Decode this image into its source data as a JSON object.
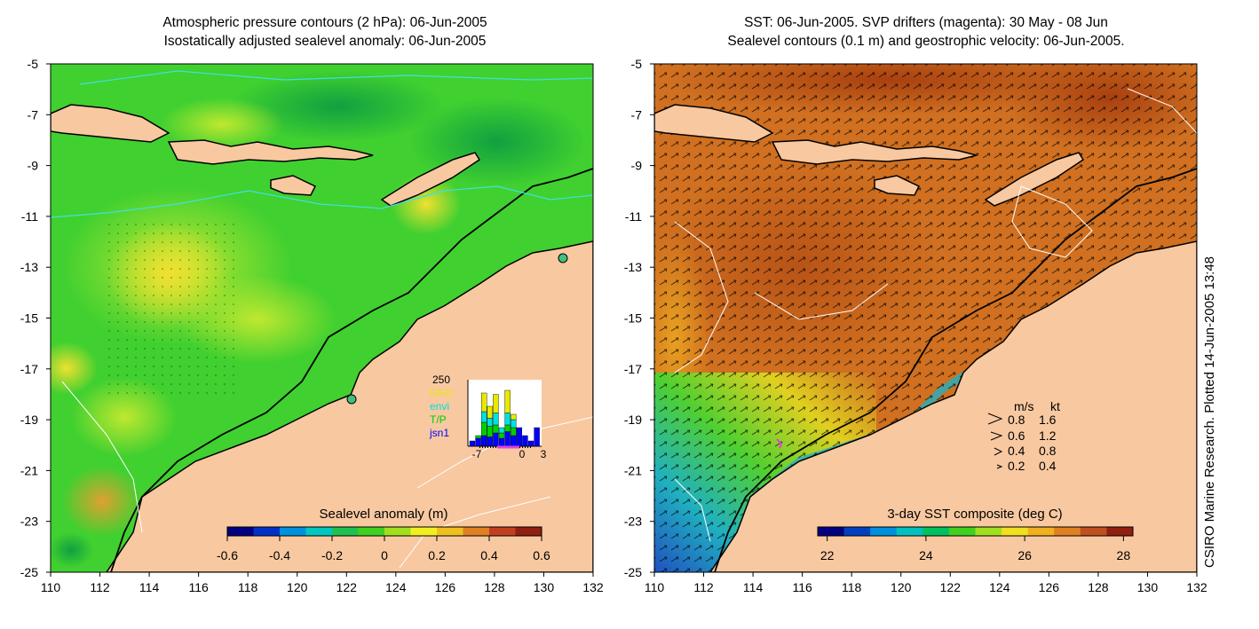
{
  "left_panel": {
    "title_line1": "Atmospheric pressure contours (2 hPa): 06-Jun-2005",
    "title_line2": "Isostatically adjusted sealevel anomaly: 06-Jun-2005",
    "x_ticks": [
      "110",
      "112",
      "114",
      "116",
      "118",
      "120",
      "122",
      "124",
      "126",
      "128",
      "130",
      "132"
    ],
    "y_ticks": [
      "-5",
      "-7",
      "-9",
      "-11",
      "-13",
      "-15",
      "-17",
      "-19",
      "-21",
      "-23",
      "-25"
    ],
    "colorbar": {
      "title": "Sealevel anomaly (m)",
      "ticks": [
        "-0.6",
        "-0.4",
        "-0.2",
        "0",
        "0.2",
        "0.4",
        "0.6"
      ],
      "colors": [
        "#000080",
        "#0030c8",
        "#0090e0",
        "#00c8c0",
        "#20c050",
        "#40d020",
        "#a0e020",
        "#f0f020",
        "#f0c020",
        "#e08020",
        "#c04020",
        "#902010"
      ]
    },
    "inset": {
      "max_label": "250",
      "legend": [
        {
          "label": "GFO",
          "color": "#e8e800"
        },
        {
          "label": "envi",
          "color": "#00e0e0"
        },
        {
          "label": "T/P",
          "color": "#00d000"
        },
        {
          "label": "jsn1",
          "color": "#0000ff"
        }
      ],
      "x_labels": [
        "-7",
        "0",
        "3"
      ],
      "bars": [
        {
          "jsn1": 20,
          "tp": 0,
          "envi": 0,
          "gfo": 0
        },
        {
          "jsn1": 30,
          "tp": 10,
          "envi": 0,
          "gfo": 0
        },
        {
          "jsn1": 40,
          "tp": 50,
          "envi": 40,
          "gfo": 70
        },
        {
          "jsn1": 35,
          "tp": 40,
          "envi": 30,
          "gfo": 45
        },
        {
          "jsn1": 50,
          "tp": 30,
          "envi": 45,
          "gfo": 70
        },
        {
          "jsn1": 30,
          "tp": 20,
          "envi": 20,
          "gfo": 0
        },
        {
          "jsn1": 55,
          "tp": 25,
          "envi": 45,
          "gfo": 85
        },
        {
          "jsn1": 40,
          "tp": 30,
          "envi": 30,
          "gfo": 20
        },
        {
          "jsn1": 70,
          "tp": 0,
          "envi": 0,
          "gfo": 0
        },
        {
          "jsn1": 40,
          "tp": 0,
          "envi": 0,
          "gfo": 0
        },
        {
          "jsn1": 20,
          "tp": 0,
          "envi": 0,
          "gfo": 0
        },
        {
          "jsn1": 70,
          "tp": 0,
          "envi": 0,
          "gfo": 0
        }
      ]
    }
  },
  "right_panel": {
    "title_line1": "SST: 06-Jun-2005. SVP drifters (magenta): 30 May - 08 Jun",
    "title_line2": "Sealevel contours (0.1 m) and geostrophic velocity: 06-Jun-2005.",
    "x_ticks": [
      "110",
      "112",
      "114",
      "116",
      "118",
      "120",
      "122",
      "124",
      "126",
      "128",
      "130",
      "132"
    ],
    "y_ticks": [
      "-5",
      "-7",
      "-9",
      "-11",
      "-13",
      "-15",
      "-17",
      "-19",
      "-21",
      "-23",
      "-25"
    ],
    "colorbar": {
      "title": "3-day SST composite (deg C)",
      "ticks": [
        "22",
        "24",
        "26",
        "28"
      ],
      "colors": [
        "#000080",
        "#0040c0",
        "#0090e0",
        "#00c0c0",
        "#00c060",
        "#40d020",
        "#a0e020",
        "#f0e020",
        "#f0b020",
        "#e08020",
        "#c05020",
        "#902010"
      ]
    },
    "velocity_key": {
      "header_ms": "m/s",
      "header_kt": "kt",
      "rows": [
        {
          "ms": "0.8",
          "kt": "1.6"
        },
        {
          "ms": "0.6",
          "kt": "1.2"
        },
        {
          "ms": "0.4",
          "kt": "0.8"
        },
        {
          "ms": "0.2",
          "kt": "0.4"
        }
      ]
    }
  },
  "credit": "CSIRO Marine Research. Plotted 14-Jun-2005 13:48",
  "colors": {
    "land": "#f8c8a0",
    "ocean_left": "#40d030",
    "ocean_right": "#d07020",
    "contour_cyan": "#40e0e0",
    "contour_white": "#ffffff",
    "coast_line": "#000000"
  }
}
